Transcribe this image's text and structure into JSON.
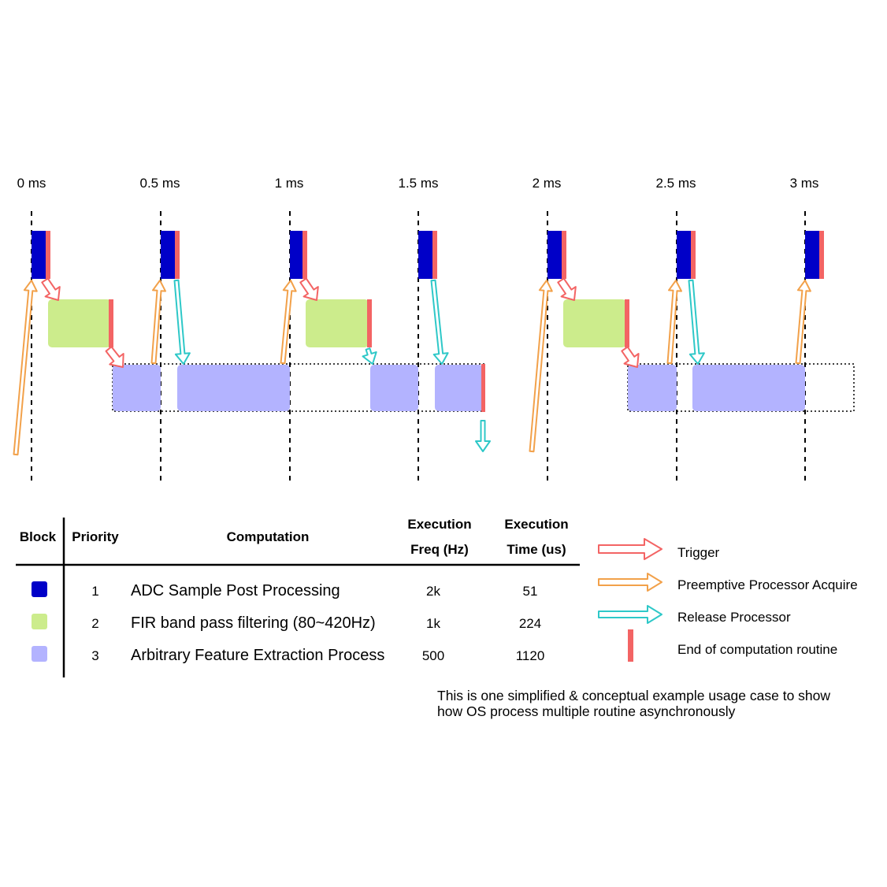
{
  "timeline": {
    "time_labels": [
      "0 ms",
      "0.5 ms",
      "1 ms",
      "1.5 ms",
      "2 ms",
      "2.5 ms",
      "3 ms"
    ]
  },
  "colors": {
    "block1": "#0000c8",
    "block2": "#ccec8c",
    "block3": "#b3b3ff",
    "end_marker": "#f36464",
    "trigger": "#f36464",
    "acquire": "#f2a14a",
    "release": "#2ec8c8"
  },
  "table": {
    "headers": {
      "block": "Block",
      "priority": "Priority",
      "computation": "Computation",
      "freq_line1": "Execution",
      "freq_line2": "Freq (Hz)",
      "time_line1": "Execution",
      "time_line2": "Time (us)"
    },
    "rows": [
      {
        "priority": "1",
        "computation": "ADC Sample Post Processing",
        "freq": "2k",
        "time": "51",
        "color": "#0000c8"
      },
      {
        "priority": "2",
        "computation": "FIR band pass filtering (80~420Hz)",
        "freq": "1k",
        "time": "224",
        "color": "#ccec8c"
      },
      {
        "priority": "3",
        "computation": "Arbitrary Feature Extraction Process",
        "freq": "500",
        "time": "1120",
        "color": "#b3b3ff"
      }
    ]
  },
  "legend": {
    "trigger": "Trigger",
    "acquire": "Preemptive Processor Acquire",
    "release": "Release Processor",
    "end": "End of computation routine"
  },
  "note": {
    "line1": "This is one simplified & conceptual example usage case to show",
    "line2": "how OS process multiple routine asynchronously"
  }
}
